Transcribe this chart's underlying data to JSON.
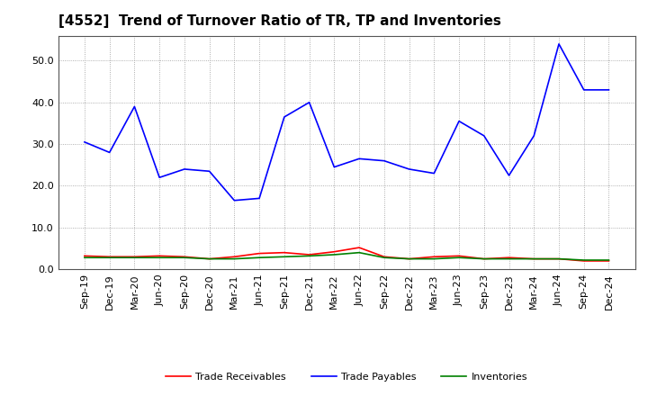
{
  "title": "[4552]  Trend of Turnover Ratio of TR, TP and Inventories",
  "x_labels": [
    "Sep-19",
    "Dec-19",
    "Mar-20",
    "Jun-20",
    "Sep-20",
    "Dec-20",
    "Mar-21",
    "Jun-21",
    "Sep-21",
    "Dec-21",
    "Mar-22",
    "Jun-22",
    "Sep-22",
    "Dec-22",
    "Mar-23",
    "Jun-23",
    "Sep-23",
    "Dec-23",
    "Mar-24",
    "Jun-24",
    "Sep-24",
    "Dec-24"
  ],
  "trade_receivables": [
    3.2,
    3.0,
    3.0,
    3.2,
    3.0,
    2.5,
    3.0,
    3.8,
    4.0,
    3.5,
    4.2,
    5.2,
    3.0,
    2.5,
    3.0,
    3.2,
    2.5,
    2.8,
    2.5,
    2.5,
    2.0,
    2.0
  ],
  "trade_payables": [
    30.5,
    28.0,
    39.0,
    22.0,
    24.0,
    23.5,
    16.5,
    17.0,
    36.5,
    40.0,
    24.5,
    26.5,
    26.0,
    24.0,
    23.0,
    35.5,
    32.0,
    22.5,
    32.0,
    54.0,
    43.0,
    43.0
  ],
  "inventories": [
    2.8,
    2.8,
    2.8,
    2.8,
    2.8,
    2.5,
    2.5,
    2.8,
    3.0,
    3.2,
    3.5,
    4.0,
    2.8,
    2.5,
    2.5,
    2.8,
    2.5,
    2.5,
    2.5,
    2.5,
    2.2,
    2.2
  ],
  "tr_color": "#ff0000",
  "tp_color": "#0000ff",
  "inv_color": "#008000",
  "ylim": [
    0.0,
    56.0
  ],
  "yticks": [
    0.0,
    10.0,
    20.0,
    30.0,
    40.0,
    50.0
  ],
  "background_color": "#ffffff",
  "grid_color": "#999999",
  "title_fontsize": 11,
  "tick_fontsize": 8,
  "legend_fontsize": 8
}
